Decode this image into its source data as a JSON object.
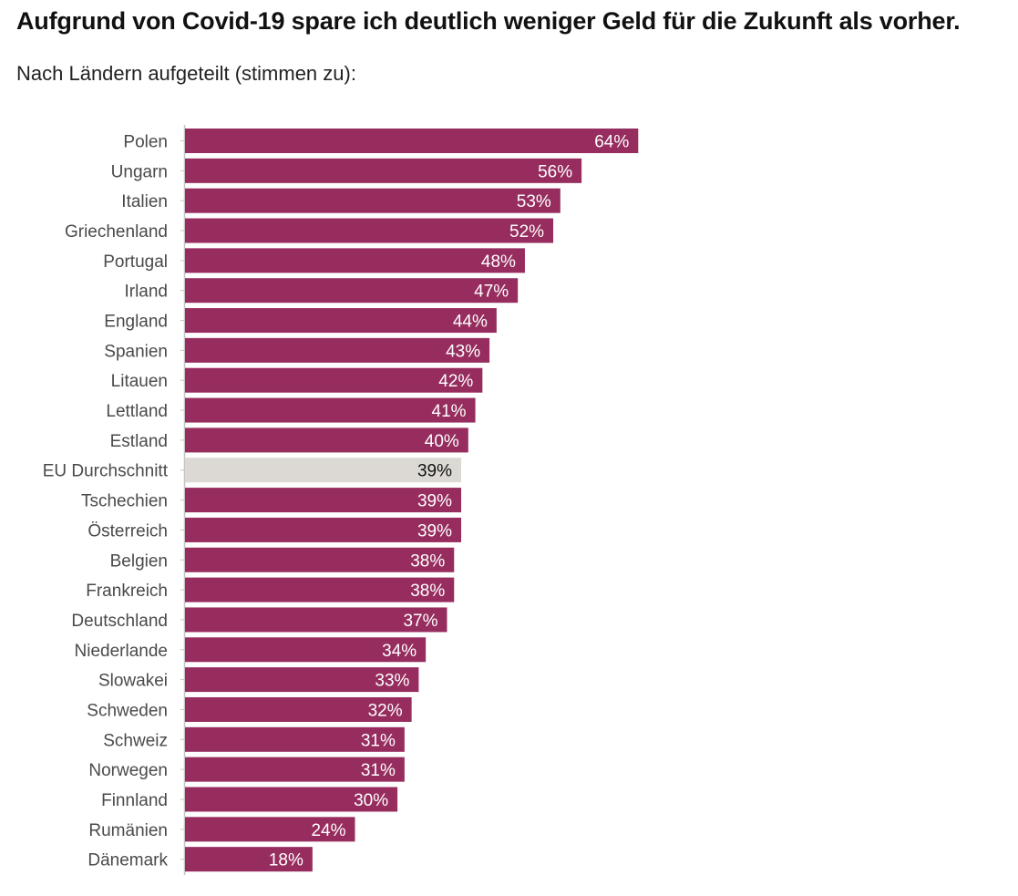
{
  "title": "Aufgrund von Covid-19 spare ich deutlich weniger Geld für die Zukunft als vorher.",
  "subtitle": "Nach Ländern aufgeteilt (stimmen zu):",
  "colors": {
    "bar": "#962d5e",
    "highlight": "#dcd9d4",
    "axis": "#c4c4c4",
    "label_on_bar": "#ffffff",
    "label_on_highlight": "#111111",
    "category_text": "#4a4a4a"
  },
  "chart_data": {
    "type": "bar",
    "orientation": "horizontal",
    "categories": [
      "Polen",
      "Ungarn",
      "Italien",
      "Griechenland",
      "Portugal",
      "Irland",
      "England",
      "Spanien",
      "Litauen",
      "Lettland",
      "Estland",
      "EU Durchschnitt",
      "Tschechien",
      "Österreich",
      "Belgien",
      "Frankreich",
      "Deutschland",
      "Niederlande",
      "Slowakei",
      "Schweden",
      "Schweiz",
      "Norwegen",
      "Finnland",
      "Rumänien",
      "Dänemark"
    ],
    "values": [
      64,
      56,
      53,
      52,
      48,
      47,
      44,
      43,
      42,
      41,
      40,
      39,
      39,
      39,
      38,
      38,
      37,
      34,
      33,
      32,
      31,
      31,
      30,
      24,
      18
    ],
    "value_labels": [
      "64%",
      "56%",
      "53%",
      "52%",
      "48%",
      "47%",
      "44%",
      "43%",
      "42%",
      "41%",
      "40%",
      "39%",
      "39%",
      "39%",
      "38%",
      "38%",
      "37%",
      "34%",
      "33%",
      "32%",
      "31%",
      "31%",
      "30%",
      "24%",
      "18%"
    ],
    "highlight": "EU Durchschnitt",
    "unit": "%",
    "xlim": [
      0,
      100
    ],
    "grid": false,
    "legend": "none"
  }
}
